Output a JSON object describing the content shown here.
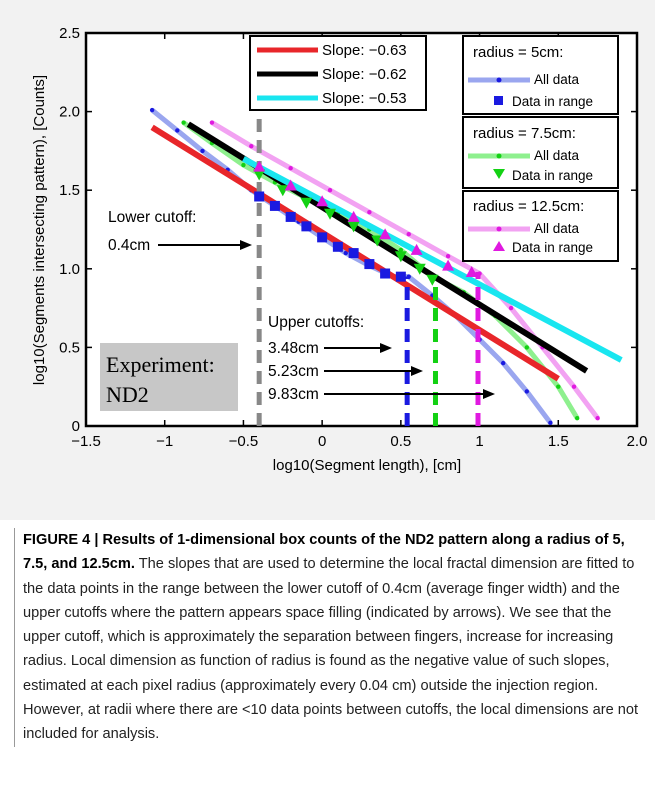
{
  "figure": {
    "xlabel": "log10(Segment length), [cm]",
    "ylabel": "log10(Segments intersecting pattern), [Counts]",
    "lower_cutoff_label_1": "Lower cutoff:",
    "lower_cutoff_label_2": "0.4cm",
    "upper_cutoffs_title": "Upper cutoffs:",
    "upper_cutoffs": [
      "3.48cm",
      "5.23cm",
      "9.83cm"
    ],
    "experiment_label_1": "Experiment:",
    "experiment_label_2": "ND2",
    "slope_legend": [
      {
        "label": "Slope: −0.63",
        "color": "#e8262a"
      },
      {
        "label": "Slope: −0.62",
        "color": "#000000"
      },
      {
        "label": "Slope: −0.53",
        "color": "#19e6f0"
      }
    ],
    "radius_legends": [
      {
        "title": "radius = 5cm:",
        "all": "All data",
        "range": "Data in range",
        "line_color": "#9aa6ef",
        "marker_color": "#1a1ae0"
      },
      {
        "title": "radius = 7.5cm:",
        "all": "All data",
        "range": "Data in range",
        "line_color": "#8ef08e",
        "marker_color": "#13d113"
      },
      {
        "title": "radius = 12.5cm:",
        "all": "All data",
        "range": "Data in range",
        "line_color": "#f2a2f2",
        "marker_color": "#e019e0"
      }
    ],
    "colors": {
      "lower_cutoff": "#888888"
    }
  },
  "chart_data": {
    "type": "line",
    "xlabel": "log10(Segment length), [cm]",
    "ylabel": "log10(Segments intersecting pattern), [Counts]",
    "xlim": [
      -1.5,
      2.0
    ],
    "ylim": [
      0,
      2.5
    ],
    "xticks": [
      "−1.5",
      "−1",
      "−0.5",
      "0",
      "0.5",
      "1",
      "1.5",
      "2.0"
    ],
    "yticks": [
      "0",
      "0.5",
      "1.0",
      "1.5",
      "2.0",
      "2.5"
    ],
    "xtick_values": [
      -1.5,
      -1,
      -0.5,
      0,
      0.5,
      1,
      1.5,
      2.0
    ],
    "ytick_values": [
      0,
      0.5,
      1.0,
      1.5,
      2.0,
      2.5
    ],
    "series": [
      {
        "name": "radius = 5cm: All data",
        "color": "#9aa6ef",
        "x": [
          -1.08,
          -0.92,
          -0.76,
          -0.6,
          -0.45,
          -0.3,
          -0.15,
          0.0,
          0.15,
          0.3,
          0.45,
          0.55,
          0.7,
          0.85,
          1.0,
          1.15,
          1.3,
          1.45
        ],
        "y": [
          2.01,
          1.88,
          1.75,
          1.63,
          1.5,
          1.4,
          1.3,
          1.2,
          1.1,
          1.02,
          0.95,
          0.95,
          0.83,
          0.7,
          0.55,
          0.4,
          0.22,
          0.02
        ]
      },
      {
        "name": "radius = 7.5cm: All data",
        "color": "#8ef08e",
        "x": [
          -0.88,
          -0.7,
          -0.5,
          -0.3,
          -0.1,
          0.1,
          0.3,
          0.5,
          0.7,
          0.9,
          1.1,
          1.3,
          1.5,
          1.62
        ],
        "y": [
          1.93,
          1.8,
          1.66,
          1.55,
          1.45,
          1.35,
          1.25,
          1.12,
          0.95,
          0.85,
          0.7,
          0.5,
          0.25,
          0.05
        ]
      },
      {
        "name": "radius = 12.5cm: All data",
        "color": "#f2a2f2",
        "x": [
          -0.7,
          -0.45,
          -0.2,
          0.05,
          0.3,
          0.55,
          0.8,
          1.0,
          1.2,
          1.4,
          1.6,
          1.75
        ],
        "y": [
          1.93,
          1.78,
          1.64,
          1.5,
          1.36,
          1.22,
          1.08,
          0.97,
          0.75,
          0.5,
          0.25,
          0.05
        ]
      },
      {
        "name": "Slope: −0.63",
        "color": "#e8262a",
        "x": [
          -1.08,
          1.5
        ],
        "y": [
          1.9,
          0.3
        ]
      },
      {
        "name": "Slope: −0.62",
        "color": "#000000",
        "x": [
          -0.85,
          1.68
        ],
        "y": [
          1.92,
          0.35
        ]
      },
      {
        "name": "Slope: −0.53",
        "color": "#19e6f0",
        "x": [
          -0.5,
          1.9
        ],
        "y": [
          1.7,
          0.42
        ]
      }
    ],
    "markers": [
      {
        "name": "radius = 5cm: Data in range",
        "color": "#1a1ae0",
        "shape": "square",
        "x": [
          -0.4,
          -0.3,
          -0.2,
          -0.1,
          0.0,
          0.1,
          0.2,
          0.3,
          0.4,
          0.5
        ],
        "y": [
          1.46,
          1.4,
          1.33,
          1.27,
          1.2,
          1.14,
          1.1,
          1.03,
          0.97,
          0.95
        ]
      },
      {
        "name": "radius = 7.5cm: Data in range",
        "color": "#13d113",
        "shape": "triangle-down",
        "x": [
          -0.4,
          -0.25,
          -0.1,
          0.05,
          0.2,
          0.35,
          0.5,
          0.62,
          0.7
        ],
        "y": [
          1.6,
          1.5,
          1.42,
          1.35,
          1.27,
          1.18,
          1.08,
          1.0,
          0.93
        ]
      },
      {
        "name": "radius = 12.5cm: Data in range",
        "color": "#e019e0",
        "shape": "triangle-up",
        "x": [
          -0.4,
          -0.2,
          0.0,
          0.2,
          0.4,
          0.6,
          0.8,
          0.95
        ],
        "y": [
          1.65,
          1.53,
          1.43,
          1.33,
          1.22,
          1.12,
          1.02,
          0.98
        ]
      }
    ],
    "cutoffs": [
      {
        "name": "lower",
        "x": -0.4,
        "y_top": 2.5,
        "color": "#888888"
      },
      {
        "name": "upper-5cm",
        "x": 0.54,
        "y_top": 0.95,
        "color": "#1a1ae0"
      },
      {
        "name": "upper-7.5cm",
        "x": 0.72,
        "y_top": 0.93,
        "color": "#13d113"
      },
      {
        "name": "upper-12.5cm",
        "x": 0.99,
        "y_top": 0.98,
        "color": "#e019e0"
      }
    ]
  },
  "caption": {
    "label": "FIGURE 4 | Results of 1-dimensional box counts of the ND2 pattern along a radius of 5, 7.5, and 12.5cm.",
    "text": " The slopes that are used to determine the local fractal dimension are fitted to the data points in the range between the lower cutoff of 0.4cm (average finger width) and the upper cutoffs where the pattern appears space filling (indicated by arrows). We see that the upper cutoff, which is approximately the separation between fingers, increase for increasing radius. Local dimension as function of radius is found as the negative value of such slopes, estimated at each pixel radius (approximately every 0.04 cm) outside the injection region. However, at radii where there are <10 data points between cutoffs, the local dimensions are not included for analysis."
  }
}
